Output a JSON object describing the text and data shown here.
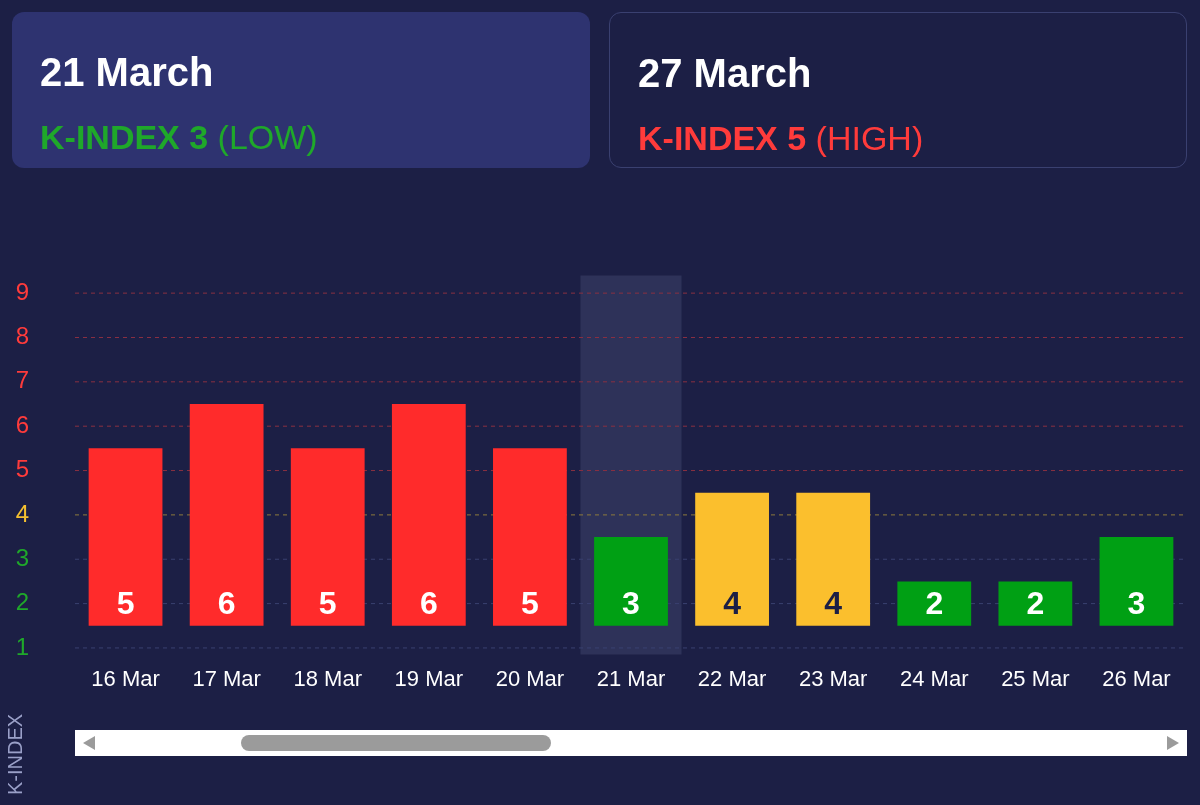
{
  "chart_data": {
    "type": "bar",
    "categories": [
      "16 Mar",
      "17 Mar",
      "18 Mar",
      "19 Mar",
      "20 Mar",
      "21 Mar",
      "22 Mar",
      "23 Mar",
      "24 Mar",
      "25 Mar",
      "26 Mar"
    ],
    "values": [
      4,
      5,
      4,
      5,
      4,
      2,
      3,
      3,
      1,
      1,
      2
    ],
    "base": [
      1.5,
      1.5,
      1.5,
      1.5,
      1.5,
      1.5,
      1.5,
      1.5,
      1.5,
      1.5,
      1.5
    ],
    "value_labels": [
      "5",
      "6",
      "5",
      "6",
      "5",
      "3",
      "4",
      "4",
      "2",
      "2",
      "3"
    ],
    "colors": [
      "#ff2b2b",
      "#ff2b2b",
      "#ff2b2b",
      "#ff2b2b",
      "#ff2b2b",
      "#00a014",
      "#fbbf2d",
      "#fbbf2d",
      "#00a014",
      "#00a014",
      "#00a014"
    ],
    "ylabel": "K-INDEX",
    "ylim": [
      0.85,
      9.4
    ],
    "yticks": [
      1,
      2,
      3,
      4,
      5,
      6,
      7,
      8,
      9
    ],
    "grid": false,
    "legend": false,
    "ref_lines": [
      {
        "axis": "y",
        "value": 1,
        "color": "#3a4170",
        "line_style": "dashed"
      },
      {
        "axis": "y",
        "value": 2,
        "color": "#3a4170",
        "line_style": "dashed"
      },
      {
        "axis": "y",
        "value": 3,
        "color": "#3a4170",
        "line_style": "dashed"
      },
      {
        "axis": "y",
        "value": 4,
        "color": "#8c7a3c",
        "line_style": "dashed"
      },
      {
        "axis": "y",
        "value": 5,
        "color": "#8a3042",
        "line_style": "dashed"
      },
      {
        "axis": "y",
        "value": 6,
        "color": "#8a3042",
        "line_style": "dashed"
      },
      {
        "axis": "y",
        "value": 7,
        "color": "#8a3042",
        "line_style": "dashed"
      },
      {
        "axis": "y",
        "value": 8,
        "color": "#8a3042",
        "line_style": "dashed"
      },
      {
        "axis": "y",
        "value": 9,
        "color": "#8a3042",
        "line_style": "dashed"
      }
    ],
    "bands": [
      {
        "axis": "x",
        "from": "21 Mar",
        "to": "21 Mar",
        "color": "#2e3259"
      }
    ],
    "annotations": [
      "21 March",
      "K-INDEX 3 (LOW)",
      "27 March",
      "K-INDEX 5 (HIGH)"
    ]
  }
}
